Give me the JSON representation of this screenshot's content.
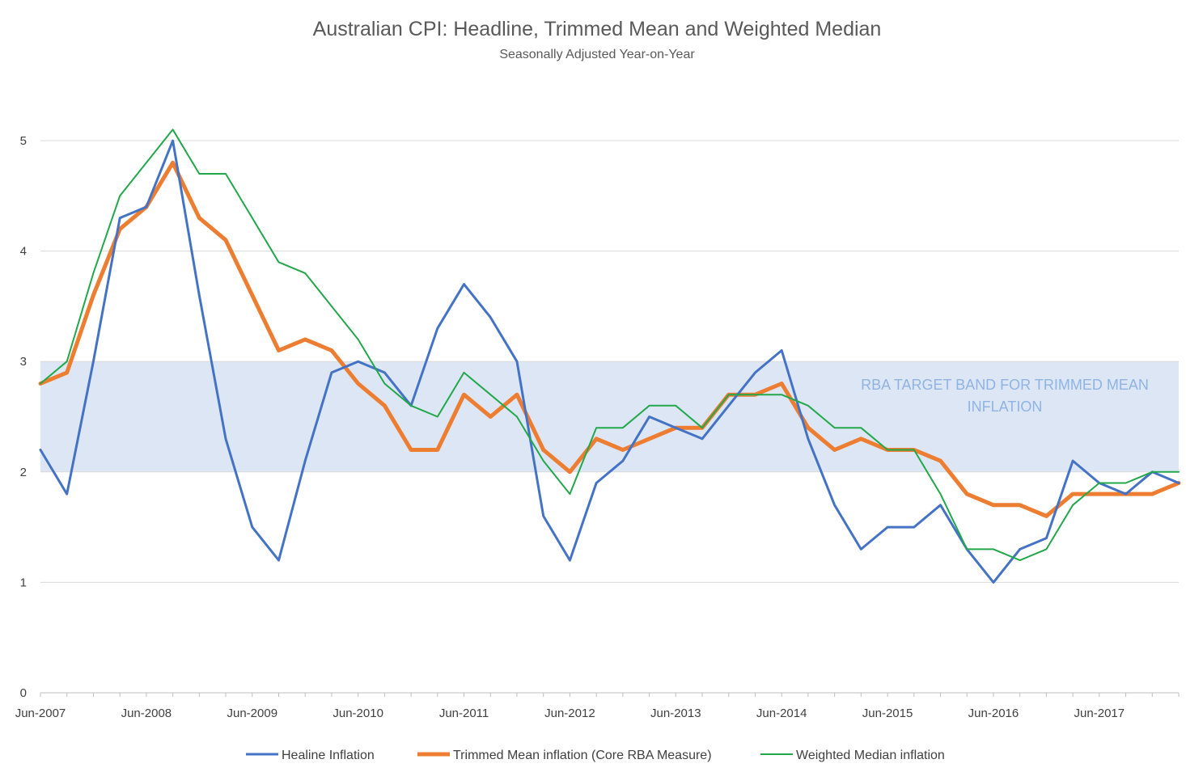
{
  "chart_data": {
    "type": "line",
    "title": "Australian CPI: Headline, Trimmed Mean and Weighted Median",
    "subtitle": "Seasonally Adjusted Year-on-Year",
    "xlabel": "",
    "ylabel": "",
    "ylim": [
      0,
      5
    ],
    "y_ticks": [
      0,
      1,
      2,
      3,
      4,
      5
    ],
    "grid": true,
    "legend_position": "bottom",
    "x_tick_labels": [
      {
        "label": "Jun-2007",
        "index": 0
      },
      {
        "label": "Jun-2008",
        "index": 4
      },
      {
        "label": "Jun-2009",
        "index": 8
      },
      {
        "label": "Jun-2010",
        "index": 12
      },
      {
        "label": "Jun-2011",
        "index": 16
      },
      {
        "label": "Jun-2012",
        "index": 20
      },
      {
        "label": "Jun-2013",
        "index": 24
      },
      {
        "label": "Jun-2014",
        "index": 28
      },
      {
        "label": "Jun-2015",
        "index": 32
      },
      {
        "label": "Jun-2016",
        "index": 36
      },
      {
        "label": "Jun-2017",
        "index": 40
      }
    ],
    "band": {
      "label_lines": [
        "RBA TARGET BAND FOR TRIMMED MEAN",
        "INFLATION"
      ],
      "y_from": 2,
      "y_to": 3,
      "color": "#dce6f5"
    },
    "series": [
      {
        "name": "Healine Inflation",
        "color": "#4472c4",
        "width": 3,
        "values": [
          2.2,
          1.8,
          3.0,
          4.3,
          4.4,
          5.0,
          3.6,
          2.3,
          1.5,
          1.2,
          2.1,
          2.9,
          3.0,
          2.9,
          2.6,
          3.3,
          3.7,
          3.4,
          3.0,
          1.6,
          1.2,
          1.9,
          2.1,
          2.5,
          2.4,
          2.3,
          2.6,
          2.9,
          3.1,
          2.3,
          1.7,
          1.3,
          1.5,
          1.5,
          1.7,
          1.3,
          1.0,
          1.3,
          1.4,
          2.1,
          1.9,
          1.8,
          2.0,
          1.9
        ]
      },
      {
        "name": "Trimmed Mean inflation (Core RBA Measure)",
        "color": "#ed7d31",
        "width": 5,
        "values": [
          2.8,
          2.9,
          3.6,
          4.2,
          4.4,
          4.8,
          4.3,
          4.1,
          3.6,
          3.1,
          3.2,
          3.1,
          2.8,
          2.6,
          2.2,
          2.2,
          2.7,
          2.5,
          2.7,
          2.2,
          2.0,
          2.3,
          2.2,
          2.3,
          2.4,
          2.4,
          2.7,
          2.7,
          2.8,
          2.4,
          2.2,
          2.3,
          2.2,
          2.2,
          2.1,
          1.8,
          1.7,
          1.7,
          1.6,
          1.8,
          1.8,
          1.8,
          1.8,
          1.9
        ]
      },
      {
        "name": "Weighted Median inflation",
        "color": "#22a84a",
        "width": 2,
        "values": [
          2.8,
          3.0,
          3.8,
          4.5,
          4.8,
          5.1,
          4.7,
          4.7,
          4.3,
          3.9,
          3.8,
          3.5,
          3.2,
          2.8,
          2.6,
          2.5,
          2.9,
          2.7,
          2.5,
          2.1,
          1.8,
          2.4,
          2.4,
          2.6,
          2.6,
          2.4,
          2.7,
          2.7,
          2.7,
          2.6,
          2.4,
          2.4,
          2.2,
          2.2,
          1.8,
          1.3,
          1.3,
          1.2,
          1.3,
          1.7,
          1.9,
          1.9,
          2.0,
          2.0
        ]
      }
    ]
  }
}
